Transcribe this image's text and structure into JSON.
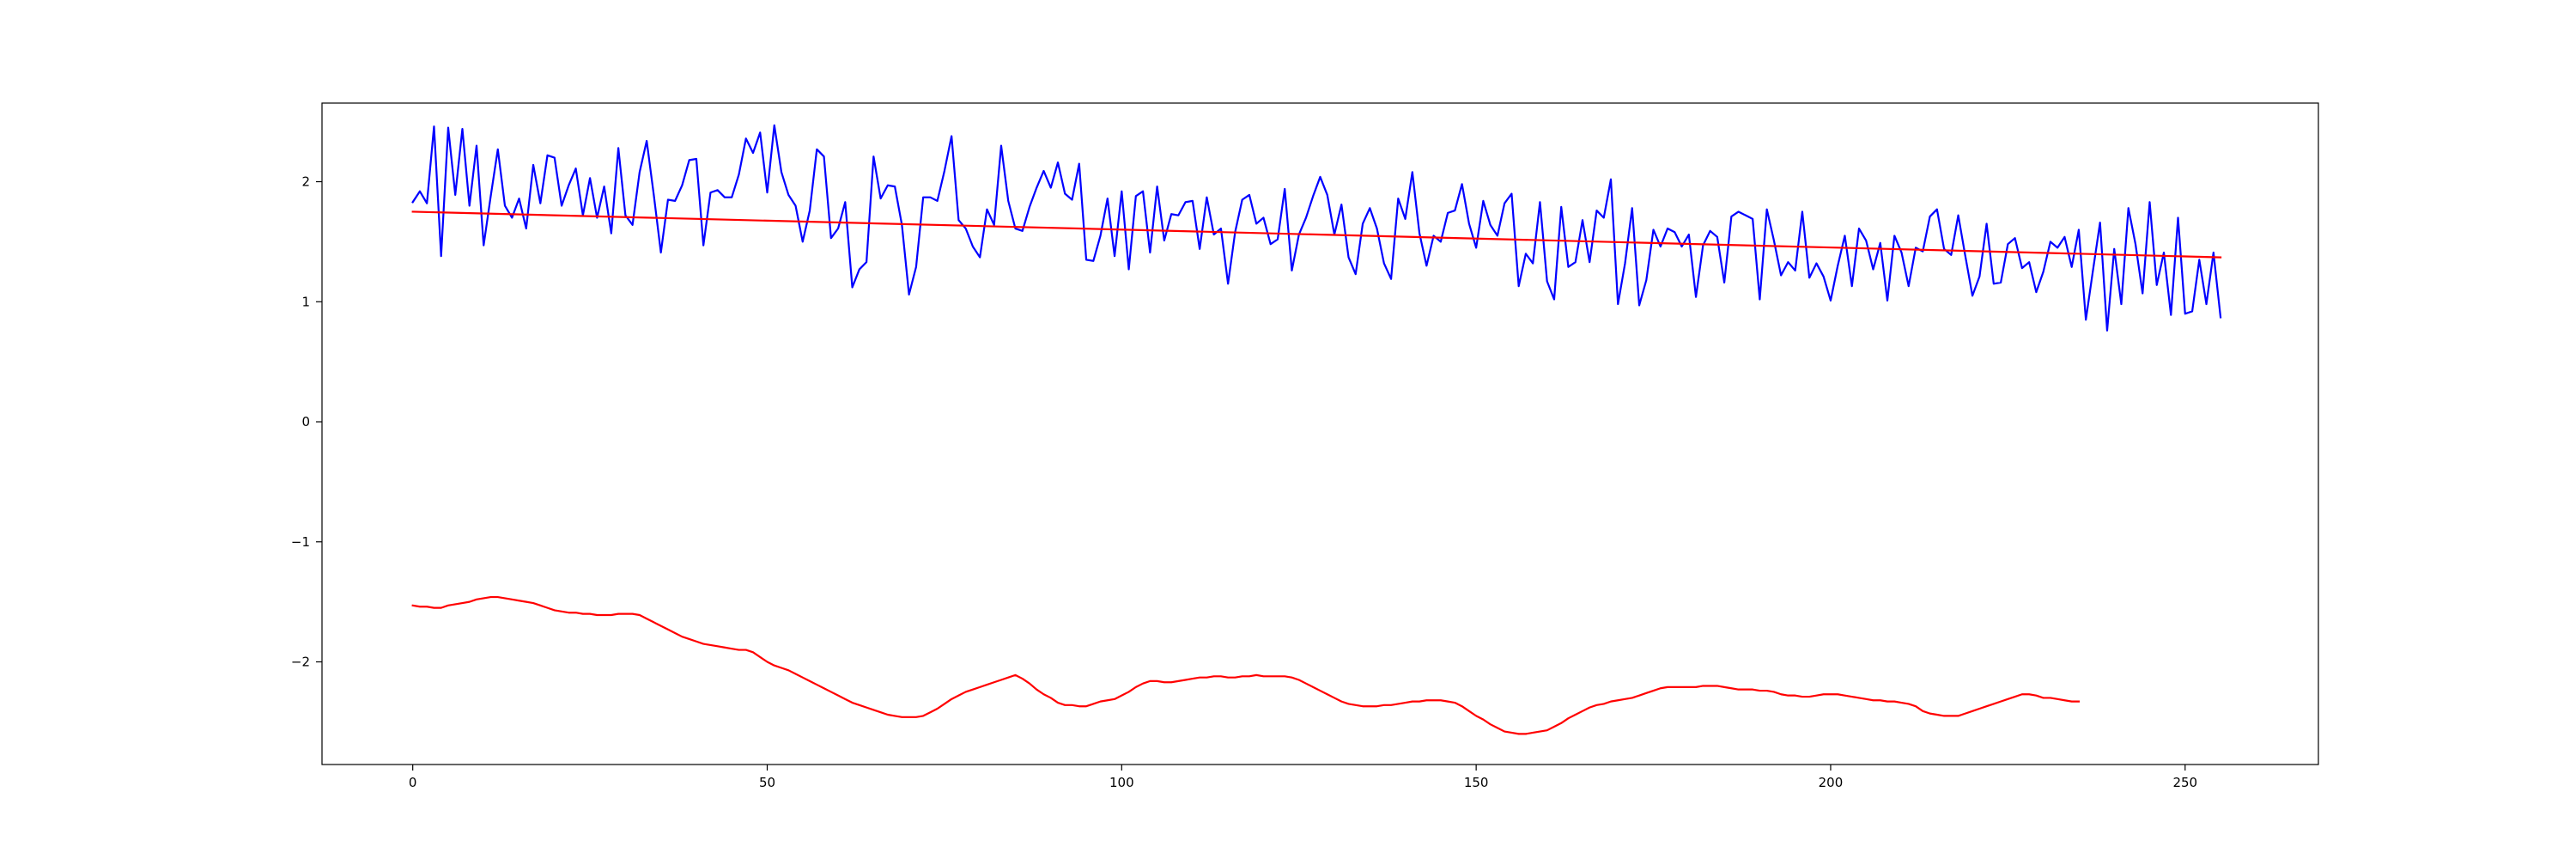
{
  "chart_data": {
    "type": "line",
    "title": "",
    "xlabel": "",
    "ylabel": "",
    "xlim": [
      -12.8,
      268.8
    ],
    "ylim": [
      -2.855,
      2.655
    ],
    "grid": false,
    "legend": "none",
    "x_ticks": [
      {
        "value": 0,
        "label": "0"
      },
      {
        "value": 50,
        "label": "50"
      },
      {
        "value": 100,
        "label": "100"
      },
      {
        "value": 150,
        "label": "150"
      },
      {
        "value": 200,
        "label": "200"
      },
      {
        "value": 250,
        "label": "250"
      }
    ],
    "y_ticks": [
      {
        "value": -2,
        "label": "−2"
      },
      {
        "value": -1,
        "label": "−1"
      },
      {
        "value": 0,
        "label": "0"
      },
      {
        "value": 1,
        "label": "1"
      },
      {
        "value": 2,
        "label": "2"
      }
    ],
    "series": [
      {
        "color": "#0000ff",
        "x_start": 0,
        "values": [
          1.83,
          1.92,
          1.82,
          2.46,
          1.38,
          2.45,
          1.89,
          2.44,
          1.8,
          2.3,
          1.47,
          1.88,
          2.27,
          1.8,
          1.7,
          1.86,
          1.61,
          2.14,
          1.82,
          2.22,
          2.2,
          1.8,
          1.97,
          2.11,
          1.72,
          2.03,
          1.7,
          1.96,
          1.57,
          2.28,
          1.72,
          1.64,
          2.08,
          2.34,
          1.89,
          1.41,
          1.85,
          1.84,
          1.97,
          2.18,
          2.19,
          1.47,
          1.91,
          1.93,
          1.87,
          1.87,
          2.06,
          2.36,
          2.24,
          2.41,
          1.91,
          2.47,
          2.08,
          1.89,
          1.8,
          1.5,
          1.76,
          2.27,
          2.21,
          1.53,
          1.61,
          1.83,
          1.12,
          1.27,
          1.33,
          2.21,
          1.86,
          1.97,
          1.96,
          1.64,
          1.06,
          1.29,
          1.87,
          1.87,
          1.84,
          2.09,
          2.38,
          1.68,
          1.61,
          1.46,
          1.37,
          1.77,
          1.64,
          2.3,
          1.84,
          1.61,
          1.59,
          1.79,
          1.95,
          2.09,
          1.95,
          2.16,
          1.9,
          1.85,
          2.15,
          1.35,
          1.34,
          1.55,
          1.86,
          1.38,
          1.92,
          1.27,
          1.88,
          1.92,
          1.41,
          1.96,
          1.51,
          1.73,
          1.72,
          1.83,
          1.84,
          1.44,
          1.87,
          1.56,
          1.61,
          1.15,
          1.58,
          1.85,
          1.89,
          1.65,
          1.7,
          1.48,
          1.52,
          1.94,
          1.26,
          1.56,
          1.7,
          1.88,
          2.04,
          1.89,
          1.56,
          1.81,
          1.37,
          1.23,
          1.65,
          1.78,
          1.61,
          1.32,
          1.19,
          1.86,
          1.69,
          2.08,
          1.57,
          1.3,
          1.55,
          1.5,
          1.74,
          1.76,
          1.98,
          1.65,
          1.45,
          1.84,
          1.64,
          1.55,
          1.82,
          1.9,
          1.13,
          1.4,
          1.32,
          1.83,
          1.17,
          1.02,
          1.79,
          1.29,
          1.33,
          1.68,
          1.33,
          1.76,
          1.7,
          2.02,
          0.98,
          1.32,
          1.78,
          0.97,
          1.18,
          1.6,
          1.46,
          1.61,
          1.58,
          1.46,
          1.56,
          1.04,
          1.47,
          1.59,
          1.54,
          1.16,
          1.71,
          1.75,
          1.72,
          1.69,
          1.02,
          1.77,
          1.51,
          1.22,
          1.33,
          1.26,
          1.75,
          1.2,
          1.32,
          1.21,
          1.01,
          1.3,
          1.55,
          1.13,
          1.61,
          1.51,
          1.27,
          1.49,
          1.01,
          1.55,
          1.41,
          1.13,
          1.45,
          1.42,
          1.71,
          1.77,
          1.44,
          1.39,
          1.72,
          1.38,
          1.05,
          1.21,
          1.65,
          1.15,
          1.16,
          1.48,
          1.53,
          1.28,
          1.33,
          1.08,
          1.25,
          1.5,
          1.45,
          1.54,
          1.29,
          1.6,
          0.85,
          1.26,
          1.66,
          0.76,
          1.44,
          0.98,
          1.78,
          1.48,
          1.07,
          1.83,
          1.14,
          1.41,
          0.89,
          1.7,
          0.9,
          0.92,
          1.35,
          0.98,
          1.41,
          0.87
        ]
      },
      {
        "color": "#ff0000",
        "x": [
          0,
          255
        ],
        "values": [
          1.75,
          1.37
        ]
      },
      {
        "color": "#ff0000",
        "x_start": 0,
        "values": [
          -1.53,
          -1.54,
          -1.54,
          -1.55,
          -1.55,
          -1.53,
          -1.52,
          -1.51,
          -1.5,
          -1.48,
          -1.47,
          -1.46,
          -1.46,
          -1.47,
          -1.48,
          -1.49,
          -1.5,
          -1.51,
          -1.53,
          -1.55,
          -1.57,
          -1.58,
          -1.59,
          -1.59,
          -1.6,
          -1.6,
          -1.61,
          -1.61,
          -1.61,
          -1.6,
          -1.6,
          -1.6,
          -1.61,
          -1.64,
          -1.67,
          -1.7,
          -1.73,
          -1.76,
          -1.79,
          -1.81,
          -1.83,
          -1.85,
          -1.86,
          -1.87,
          -1.88,
          -1.89,
          -1.9,
          -1.9,
          -1.92,
          -1.96,
          -2.0,
          -2.03,
          -2.05,
          -2.07,
          -2.1,
          -2.13,
          -2.16,
          -2.19,
          -2.22,
          -2.25,
          -2.28,
          -2.31,
          -2.34,
          -2.36,
          -2.38,
          -2.4,
          -2.42,
          -2.44,
          -2.45,
          -2.46,
          -2.46,
          -2.46,
          -2.45,
          -2.42,
          -2.39,
          -2.35,
          -2.31,
          -2.28,
          -2.25,
          -2.23,
          -2.21,
          -2.19,
          -2.17,
          -2.15,
          -2.13,
          -2.11,
          -2.14,
          -2.18,
          -2.23,
          -2.27,
          -2.3,
          -2.34,
          -2.36,
          -2.36,
          -2.37,
          -2.37,
          -2.35,
          -2.33,
          -2.32,
          -2.31,
          -2.28,
          -2.25,
          -2.21,
          -2.18,
          -2.16,
          -2.16,
          -2.17,
          -2.17,
          -2.16,
          -2.15,
          -2.14,
          -2.13,
          -2.13,
          -2.12,
          -2.12,
          -2.13,
          -2.13,
          -2.12,
          -2.12,
          -2.11,
          -2.12,
          -2.12,
          -2.12,
          -2.12,
          -2.13,
          -2.15,
          -2.18,
          -2.21,
          -2.24,
          -2.27,
          -2.3,
          -2.33,
          -2.35,
          -2.36,
          -2.37,
          -2.37,
          -2.37,
          -2.36,
          -2.36,
          -2.35,
          -2.34,
          -2.33,
          -2.33,
          -2.32,
          -2.32,
          -2.32,
          -2.33,
          -2.34,
          -2.37,
          -2.41,
          -2.45,
          -2.48,
          -2.52,
          -2.55,
          -2.58,
          -2.59,
          -2.6,
          -2.6,
          -2.59,
          -2.58,
          -2.57,
          -2.54,
          -2.51,
          -2.47,
          -2.44,
          -2.41,
          -2.38,
          -2.36,
          -2.35,
          -2.33,
          -2.32,
          -2.31,
          -2.3,
          -2.28,
          -2.26,
          -2.24,
          -2.22,
          -2.21,
          -2.21,
          -2.21,
          -2.21,
          -2.21,
          -2.2,
          -2.2,
          -2.2,
          -2.21,
          -2.22,
          -2.23,
          -2.23,
          -2.23,
          -2.24,
          -2.24,
          -2.25,
          -2.27,
          -2.28,
          -2.28,
          -2.29,
          -2.29,
          -2.28,
          -2.27,
          -2.27,
          -2.27,
          -2.28,
          -2.29,
          -2.3,
          -2.31,
          -2.32,
          -2.32,
          -2.33,
          -2.33,
          -2.34,
          -2.35,
          -2.37,
          -2.41,
          -2.43,
          -2.44,
          -2.45,
          -2.45,
          -2.45,
          -2.43,
          -2.41,
          -2.39,
          -2.37,
          -2.35,
          -2.33,
          -2.31,
          -2.29,
          -2.27,
          -2.27,
          -2.28,
          -2.3,
          -2.3,
          -2.31,
          -2.32,
          -2.33,
          -2.33
        ]
      }
    ]
  }
}
